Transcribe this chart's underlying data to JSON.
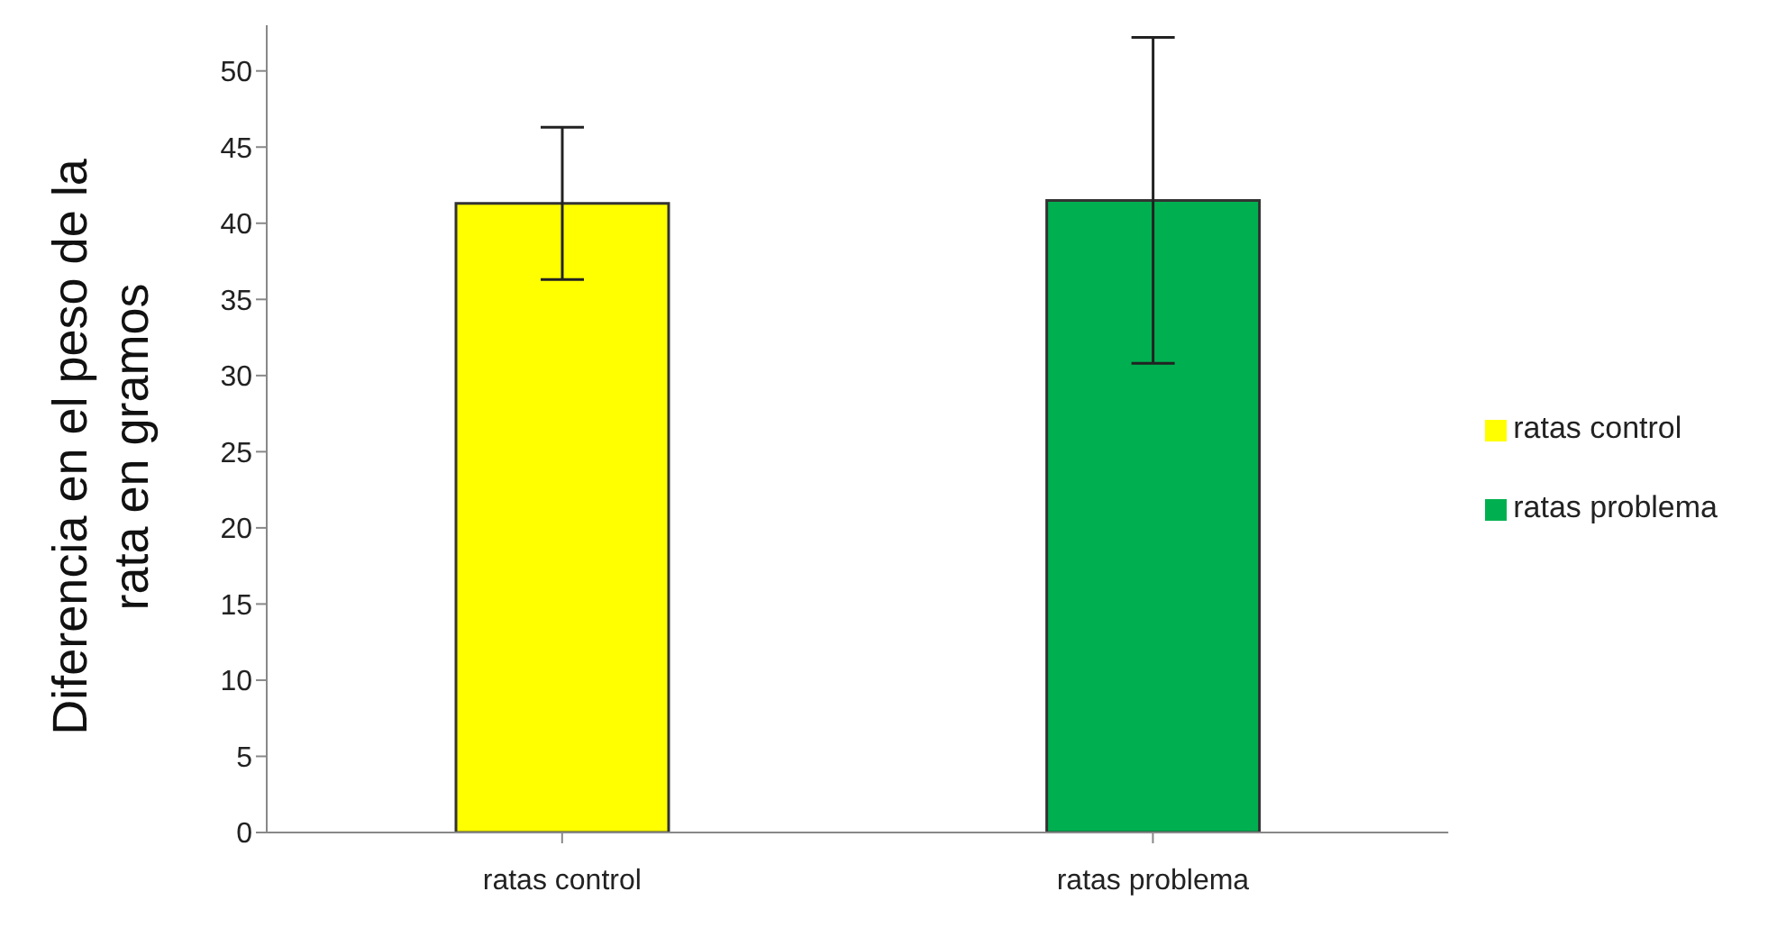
{
  "chart_data": {
    "type": "bar",
    "ylabel": "Diferencia en el peso de la rata en gramos",
    "categories": [
      "ratas control",
      "ratas problema"
    ],
    "series": [
      {
        "name": "ratas control",
        "color": "#ffff00",
        "values": [
          41.3,
          null
        ],
        "errors": [
          5,
          null
        ]
      },
      {
        "name": "ratas problema",
        "color": "#00b050",
        "values": [
          null,
          41.5
        ],
        "errors": [
          null,
          10.7
        ]
      }
    ],
    "stacked": true,
    "ylim": [
      0,
      53
    ],
    "yticks": [
      0,
      5,
      10,
      15,
      20,
      25,
      30,
      35,
      40,
      45,
      50
    ],
    "grid": false,
    "legend": "right"
  }
}
